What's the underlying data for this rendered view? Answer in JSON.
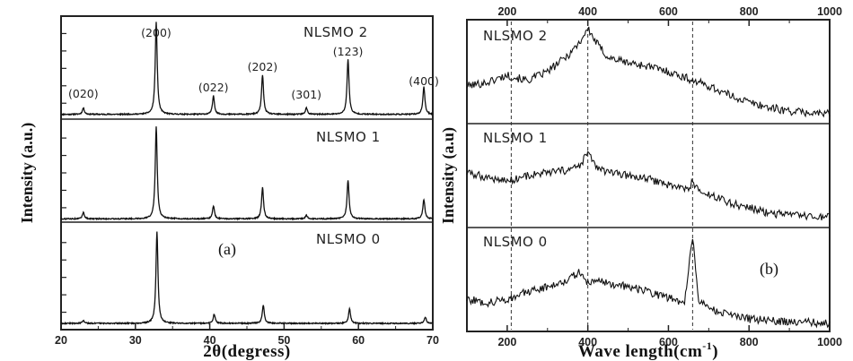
{
  "figure": {
    "panel_a_label": "(a)",
    "panel_b_label": "(b)"
  },
  "chart_data": [
    {
      "type": "line",
      "panel": "(a)",
      "xlabel": "2θ(degress)",
      "ylabel": "Intensity (a.u.)",
      "xlim": [
        20,
        70
      ],
      "x_ticks": [
        "20",
        "30",
        "40",
        "50",
        "60",
        "70"
      ],
      "stacked": true,
      "series": [
        {
          "name": "NLSMO 2",
          "peaks": [
            {
              "x": 23.0,
              "h": 0.07
            },
            {
              "x": 32.8,
              "h": 1.0
            },
            {
              "x": 40.5,
              "h": 0.2
            },
            {
              "x": 47.1,
              "h": 0.43
            },
            {
              "x": 53.0,
              "h": 0.07
            },
            {
              "x": 58.6,
              "h": 0.6
            },
            {
              "x": 68.8,
              "h": 0.3
            }
          ]
        },
        {
          "name": "NLSMO 1",
          "peaks": [
            {
              "x": 23.0,
              "h": 0.07
            },
            {
              "x": 32.8,
              "h": 1.0
            },
            {
              "x": 40.5,
              "h": 0.14
            },
            {
              "x": 47.1,
              "h": 0.34
            },
            {
              "x": 53.0,
              "h": 0.04
            },
            {
              "x": 58.6,
              "h": 0.42
            },
            {
              "x": 68.8,
              "h": 0.21
            }
          ]
        },
        {
          "name": "NLSMO 0",
          "peaks": [
            {
              "x": 23.0,
              "h": 0.03
            },
            {
              "x": 32.9,
              "h": 1.0
            },
            {
              "x": 40.6,
              "h": 0.1
            },
            {
              "x": 47.2,
              "h": 0.2
            },
            {
              "x": 58.8,
              "h": 0.16
            },
            {
              "x": 69.0,
              "h": 0.07
            }
          ]
        }
      ],
      "annotations": [
        {
          "text": "(020)",
          "x": 23.0
        },
        {
          "text": "(200)",
          "x": 32.8
        },
        {
          "text": "(022)",
          "x": 40.5
        },
        {
          "text": "(202)",
          "x": 47.1
        },
        {
          "text": "(301)",
          "x": 53.0
        },
        {
          "text": "(123)",
          "x": 58.6
        },
        {
          "text": "(400)",
          "x": 68.8
        }
      ]
    },
    {
      "type": "line",
      "panel": "(b)",
      "xlabel": "Wave length(cm",
      "xlabel_sup": "-1",
      "xlabel_close": ")",
      "ylabel": "Intensity (a.u)",
      "xlim": [
        100,
        1000
      ],
      "x_ticks_bottom": [
        "200",
        "400",
        "600",
        "800",
        "1000"
      ],
      "x_ticks_top": [
        "200",
        "400",
        "600",
        "800",
        "1000"
      ],
      "reference_lines_x": [
        210,
        400,
        660
      ],
      "stacked": true,
      "series": [
        {
          "name": "NLSMO 2",
          "points": [
            [
              100,
              0.36
            ],
            [
              150,
              0.4
            ],
            [
              200,
              0.48
            ],
            [
              250,
              0.42
            ],
            [
              300,
              0.52
            ],
            [
              350,
              0.7
            ],
            [
              380,
              0.85
            ],
            [
              400,
              1.0
            ],
            [
              420,
              0.85
            ],
            [
              450,
              0.68
            ],
            [
              500,
              0.62
            ],
            [
              550,
              0.58
            ],
            [
              600,
              0.52
            ],
            [
              650,
              0.44
            ],
            [
              700,
              0.36
            ],
            [
              750,
              0.26
            ],
            [
              800,
              0.18
            ],
            [
              850,
              0.12
            ],
            [
              900,
              0.08
            ],
            [
              950,
              0.06
            ],
            [
              1000,
              0.05
            ]
          ]
        },
        {
          "name": "NLSMO 1",
          "points": [
            [
              100,
              0.55
            ],
            [
              150,
              0.5
            ],
            [
              200,
              0.46
            ],
            [
              250,
              0.52
            ],
            [
              300,
              0.55
            ],
            [
              350,
              0.58
            ],
            [
              380,
              0.62
            ],
            [
              400,
              0.78
            ],
            [
              420,
              0.62
            ],
            [
              450,
              0.55
            ],
            [
              500,
              0.52
            ],
            [
              550,
              0.48
            ],
            [
              600,
              0.42
            ],
            [
              650,
              0.36
            ],
            [
              660,
              0.46
            ],
            [
              680,
              0.32
            ],
            [
              720,
              0.28
            ],
            [
              750,
              0.22
            ],
            [
              800,
              0.16
            ],
            [
              850,
              0.1
            ],
            [
              900,
              0.08
            ],
            [
              950,
              0.06
            ],
            [
              1000,
              0.05
            ]
          ]
        },
        {
          "name": "NLSMO 0",
          "points": [
            [
              100,
              0.3
            ],
            [
              150,
              0.26
            ],
            [
              200,
              0.3
            ],
            [
              250,
              0.38
            ],
            [
              300,
              0.44
            ],
            [
              350,
              0.52
            ],
            [
              380,
              0.6
            ],
            [
              400,
              0.48
            ],
            [
              430,
              0.52
            ],
            [
              460,
              0.46
            ],
            [
              500,
              0.44
            ],
            [
              550,
              0.38
            ],
            [
              600,
              0.32
            ],
            [
              640,
              0.26
            ],
            [
              660,
              1.0
            ],
            [
              675,
              0.3
            ],
            [
              700,
              0.2
            ],
            [
              750,
              0.12
            ],
            [
              800,
              0.08
            ],
            [
              850,
              0.06
            ],
            [
              900,
              0.05
            ],
            [
              950,
              0.04
            ],
            [
              1000,
              0.03
            ]
          ]
        }
      ]
    }
  ]
}
